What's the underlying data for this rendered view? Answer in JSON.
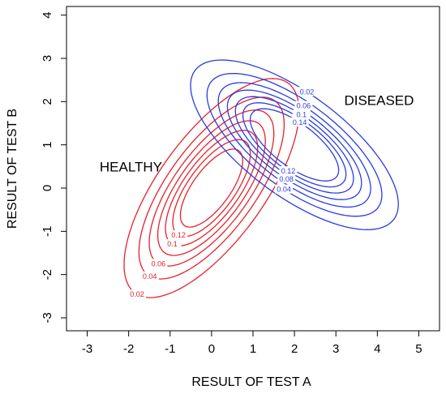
{
  "chart_data": {
    "type": "contour",
    "xlabel": "RESULT OF TEST A",
    "ylabel": "RESULT OF TEST B",
    "xlim": [
      -3.5,
      5.5
    ],
    "ylim": [
      -3.3,
      4.2
    ],
    "x_ticks": [
      "-3",
      "-2",
      "-1",
      "0",
      "1",
      "2",
      "3",
      "4",
      "5"
    ],
    "y_ticks": [
      "-3",
      "-2",
      "-1",
      "0",
      "1",
      "2",
      "3",
      "4"
    ],
    "series": [
      {
        "name": "HEALTHY",
        "color": "#e8202a",
        "center": [
          0,
          0
        ],
        "sd": [
          1,
          1.2
        ],
        "correlation": 0.7,
        "levels": [
          0.02,
          0.04,
          0.06,
          0.08,
          0.1,
          0.12,
          0.14
        ],
        "labeled_levels": [
          "0.02",
          "0.04",
          "0.06",
          "0.1",
          "0.12"
        ]
      },
      {
        "name": "DISEASED",
        "color": "#2a3de0",
        "center": [
          2,
          1
        ],
        "sd": [
          1.15,
          0.9
        ],
        "correlation": -0.7,
        "levels": [
          0.02,
          0.04,
          0.06,
          0.08,
          0.1,
          0.12,
          0.14
        ],
        "labeled_levels": [
          "0.02",
          "0.04",
          "0.06",
          "0.08",
          "0.1",
          "0.12",
          "0.14"
        ]
      }
    ],
    "annotations": [
      {
        "text": "HEALTHY",
        "x": -2.7,
        "y": 0.38
      },
      {
        "text": "DISEASED",
        "x": 3.2,
        "y": 1.92
      }
    ]
  }
}
